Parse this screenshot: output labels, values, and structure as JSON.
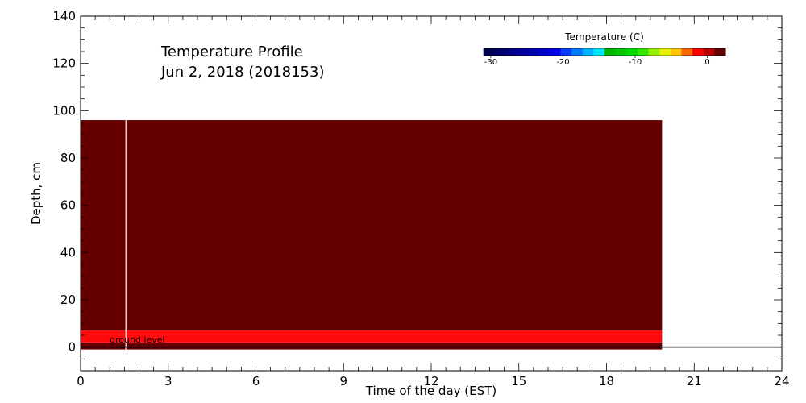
{
  "chart_data": {
    "type": "heatmap",
    "title_line1": "Temperature Profile",
    "title_line2": "Jun  2, 2018 (2018153)",
    "xlabel": "Time of the day (EST)",
    "ylabel": "Depth, cm",
    "xlim": [
      0,
      24
    ],
    "ylim": [
      -10,
      140
    ],
    "xticks": [
      0,
      3,
      6,
      9,
      12,
      15,
      18,
      21,
      24
    ],
    "yticks": [
      0,
      20,
      40,
      60,
      80,
      100,
      120,
      140
    ],
    "data_end_time": 19.9,
    "gap_time": 1.55,
    "layers": [
      {
        "depth_bottom": -1,
        "depth_top": 2,
        "color": "#640000"
      },
      {
        "depth_bottom": 2,
        "depth_top": 7,
        "color": "#ff0a0a"
      },
      {
        "depth_bottom": 7,
        "depth_top": 96,
        "color": "#640000"
      }
    ],
    "ground_level": 0,
    "ground_label": "ground level",
    "colorbar": {
      "title": "Temperature (C)",
      "min": -31,
      "max": 2.5,
      "ticks": [
        -30,
        -20,
        -10,
        0
      ],
      "tick_labels": [
        "-30",
        "-20",
        "-10",
        "0"
      ],
      "colors": [
        "#000050",
        "#000066",
        "#000080",
        "#000099",
        "#0000b3",
        "#0000cc",
        "#0000e6",
        "#0a3cff",
        "#0078ff",
        "#00b4ff",
        "#00e6ff",
        "#00b400",
        "#00c800",
        "#00dc00",
        "#32e600",
        "#96f000",
        "#e6f000",
        "#ffc800",
        "#ff6400",
        "#ff0000",
        "#b40000",
        "#640000"
      ]
    }
  }
}
